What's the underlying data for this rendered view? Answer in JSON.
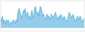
{
  "chart_data": {
    "type": "area",
    "values": [
      5,
      3,
      6,
      2,
      4,
      3,
      2,
      4,
      3,
      4,
      2,
      1,
      3,
      2,
      3,
      4,
      3,
      2,
      4,
      3,
      7,
      9,
      10,
      8,
      6,
      5,
      7,
      9,
      8,
      10,
      6,
      7,
      8,
      5,
      6,
      4,
      7,
      9,
      6,
      5,
      10,
      11,
      9,
      7,
      8,
      6,
      9,
      11,
      10,
      8,
      6,
      7,
      5,
      4,
      6,
      7,
      5,
      6,
      5,
      4,
      7,
      6,
      5,
      6,
      7,
      8,
      6,
      5,
      4,
      6,
      5,
      7,
      6,
      5,
      4,
      6,
      5,
      4,
      3,
      4,
      6,
      8,
      7,
      6,
      5,
      6,
      7,
      5,
      4,
      3,
      5,
      6,
      4,
      5,
      6,
      5,
      4,
      3,
      4,
      5
    ],
    "color": "#4daadd",
    "xlim": [
      0,
      99
    ],
    "ylim": [
      -2,
      14
    ],
    "tick_labels": false
  }
}
